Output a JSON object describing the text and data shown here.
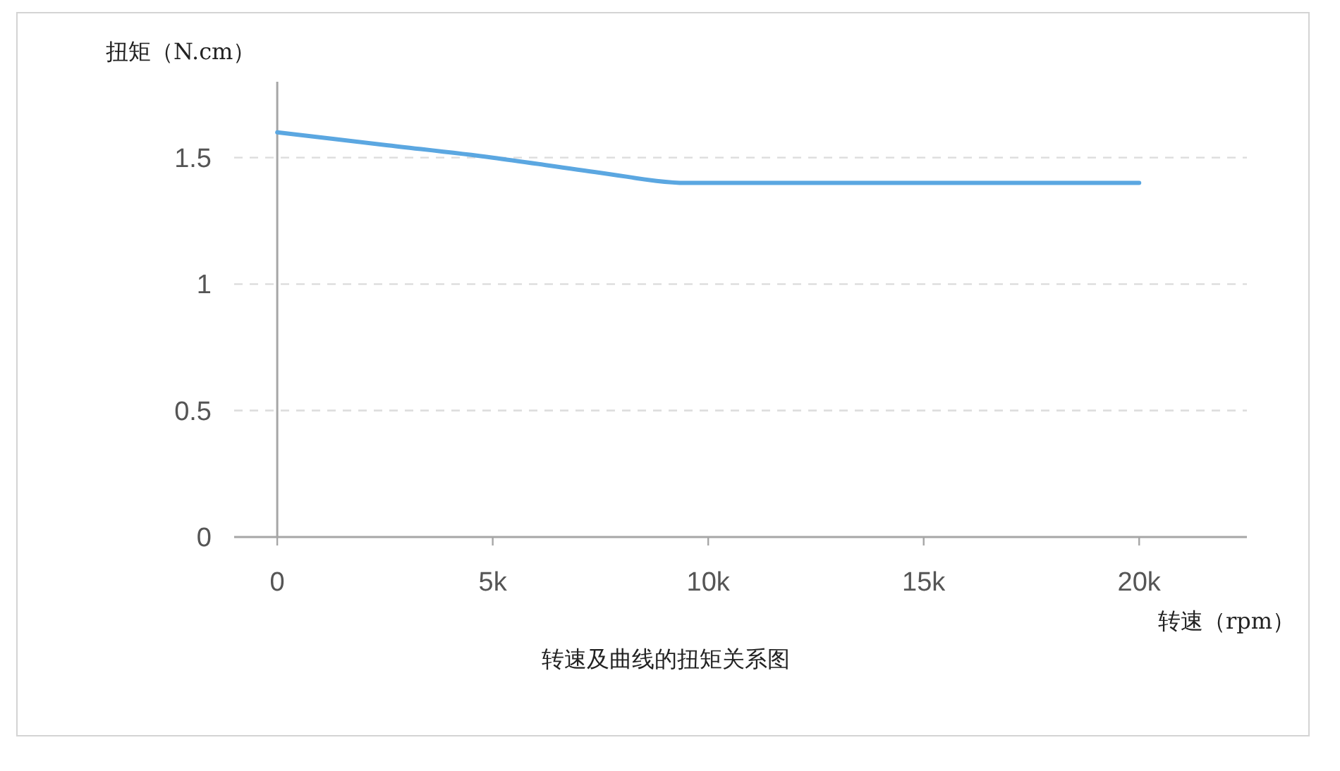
{
  "chart_data": {
    "type": "line",
    "title": "转速及曲线的扭矩关系图",
    "xlabel": "转速（rpm）",
    "ylabel": "扭矩（N.cm）",
    "series": [
      {
        "color": "#5ba7e1",
        "x": [
          0,
          2500,
          5000,
          7500,
          9500,
          12000,
          15000,
          20000
        ],
        "values": [
          1.6,
          1.55,
          1.5,
          1.44,
          1.4,
          1.4,
          1.4,
          1.4
        ]
      }
    ],
    "xlim": [
      -1000,
      22500
    ],
    "xticks": [
      0,
      {
        "value": 5000,
        "label": "5k"
      },
      {
        "value": 10000,
        "label": "10k"
      },
      {
        "value": 15000,
        "label": "15k"
      },
      {
        "value": 20000,
        "label": "20k"
      }
    ],
    "ylim": [
      0,
      1.8
    ],
    "yticks": [
      0,
      0.5,
      1,
      1.5
    ],
    "grid": "y",
    "line_style": "solid"
  }
}
